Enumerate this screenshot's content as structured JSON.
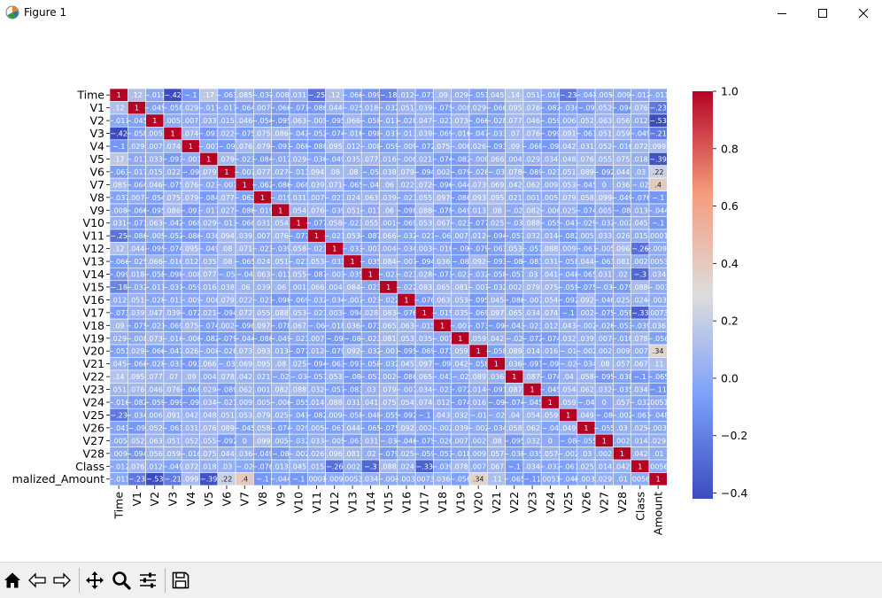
{
  "window": {
    "title": "Figure 1",
    "app_icon": "matplotlib-icon",
    "controls": [
      "minimize-icon",
      "maximize-icon",
      "close-icon"
    ]
  },
  "toolbar": {
    "buttons": [
      {
        "name": "home-button",
        "icon": "home-icon"
      },
      {
        "name": "back-button",
        "icon": "arrow-left-icon"
      },
      {
        "name": "forward-button",
        "icon": "arrow-right-icon"
      },
      {
        "name": "pan-button",
        "icon": "move-icon"
      },
      {
        "name": "zoom-button",
        "icon": "magnifier-icon"
      },
      {
        "name": "configure-subplots-button",
        "icon": "sliders-icon"
      },
      {
        "name": "save-button",
        "icon": "floppy-disk-icon"
      }
    ]
  },
  "chart_data": {
    "type": "heatmap",
    "colormap": "coolwarm",
    "labels": [
      "Time",
      "V1",
      "V2",
      "V3",
      "V4",
      "V5",
      "V6",
      "V7",
      "V8",
      "V9",
      "V10",
      "V11",
      "V12",
      "V13",
      "V14",
      "V15",
      "V16",
      "V17",
      "V18",
      "V19",
      "V20",
      "V21",
      "V22",
      "V23",
      "V24",
      "V25",
      "V26",
      "V27",
      "V28",
      "Class",
      "Normalized_Amount"
    ],
    "x_tick_labels": [
      "Time",
      "V1",
      "V2",
      "V3",
      "V4",
      "V5",
      "V6",
      "V7",
      "V8",
      "V9",
      "V10",
      "V11",
      "V12",
      "V13",
      "V14",
      "V15",
      "V16",
      "V17",
      "V18",
      "V19",
      "V20",
      "V21",
      "V22",
      "V23",
      "V24",
      "V25",
      "V26",
      "V27",
      "V28",
      "Class",
      "Amount"
    ],
    "y_tick_labels": [
      "Time",
      "V1",
      "V2",
      "V3",
      "V4",
      "V5",
      "V6",
      "V7",
      "V8",
      "V9",
      "V10",
      "V11",
      "V12",
      "V13",
      "V14",
      "V15",
      "V16",
      "V17",
      "V18",
      "V19",
      "V20",
      "V21",
      "V22",
      "V23",
      "V24",
      "V25",
      "V26",
      "V27",
      "V28",
      "Class",
      "malized_Amount"
    ],
    "first_row_values": [
      1,
      0.12,
      -0.011,
      -0.42,
      -0.1,
      0.17,
      -0.063,
      0.085,
      -0.037,
      -0.0087,
      0.031,
      -0.25,
      0.12,
      -0.066,
      -0.099,
      -0.18,
      0.012,
      -0.073,
      0.09,
      0.029,
      -0.051,
      0.045,
      0.14,
      0.051,
      -0.016,
      -0.23,
      -0.041,
      -0.0051,
      -0.0094,
      -0.012,
      -0.011
    ],
    "last_row_values": [
      -0.011,
      -0.23,
      -0.53,
      -0.21,
      0.099,
      -0.39,
      0.22,
      0.4,
      -0.1,
      -0.044,
      -0.1,
      0.0001,
      -0.0095,
      0.0053,
      0.034,
      -0.003,
      -0.0039,
      0.0073,
      0.036,
      -0.056,
      0.34,
      0.11,
      -0.065,
      -0.11,
      0.0051,
      -0.048,
      -0.0032,
      0.029,
      0.01,
      0.0056,
      1
    ],
    "last_column_values": [
      -0.011,
      -0.23,
      -0.53,
      -0.21,
      0.099,
      -0.39,
      0.22,
      0.4,
      -0.1,
      -0.044,
      -0.1,
      0.0001,
      -0.0095,
      0.0053,
      0.034,
      -0.003,
      -0.0039,
      0.0073,
      0.036,
      -0.056,
      0.34,
      0.11,
      -0.065,
      -0.11,
      0.0051,
      -0.048,
      -0.0032,
      0.029,
      0.01,
      0.0056,
      1
    ],
    "strong_correlations": [
      {
        "a": "Time",
        "b": "V3",
        "value": -0.42
      },
      {
        "a": "V2",
        "b": "Normalized_Amount",
        "value": -0.53
      },
      {
        "a": "V7",
        "b": "Normalized_Amount",
        "value": 0.4
      },
      {
        "a": "V5",
        "b": "Normalized_Amount",
        "value": -0.39
      },
      {
        "a": "V20",
        "b": "Normalized_Amount",
        "value": 0.34
      },
      {
        "a": "V17",
        "b": "Class",
        "value": -0.33
      },
      {
        "a": "V14",
        "b": "Class",
        "value": -0.3
      },
      {
        "a": "V12",
        "b": "Class",
        "value": -0.26
      }
    ],
    "colorbar": {
      "ticks": [
        "1.0",
        "0.8",
        "0.6",
        "0.4",
        "0.2",
        "0.0",
        "−0.2",
        "−0.4"
      ],
      "vmin": -0.42,
      "vmax": 1.0
    }
  }
}
